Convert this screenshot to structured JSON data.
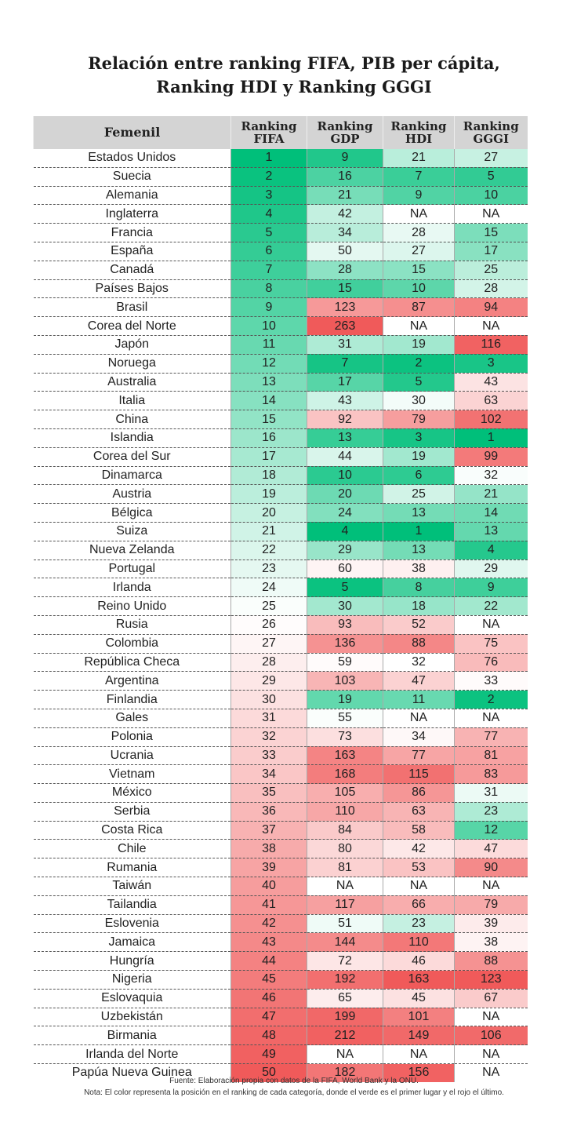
{
  "title_line1": "Relación entre ranking FIFA, PIB per cápita,",
  "title_line2": "Ranking HDI y Ranking GGGI",
  "chart_data": {
    "type": "heatmap",
    "title": "Relación entre ranking FIFA, PIB per cápita, Ranking HDI y Ranking GGGI",
    "row_header": "Femenil",
    "columns": [
      "Ranking FIFA",
      "Ranking GDP",
      "Ranking HDI",
      "Ranking GGGI"
    ],
    "color_scale": {
      "best": "#00bf7a",
      "mid": "#ffffff",
      "worst": "#f05a5a"
    },
    "rows": [
      [
        "Estados Unidos",
        "1",
        "9",
        "21",
        "27"
      ],
      [
        "Suecia",
        "2",
        "16",
        "7",
        "5"
      ],
      [
        "Alemania",
        "3",
        "21",
        "9",
        "10"
      ],
      [
        "Inglaterra",
        "4",
        "42",
        "NA",
        "NA"
      ],
      [
        "Francia",
        "5",
        "34",
        "28",
        "15"
      ],
      [
        "España",
        "6",
        "50",
        "27",
        "17"
      ],
      [
        "Canadá",
        "7",
        "28",
        "15",
        "25"
      ],
      [
        "Países Bajos",
        "8",
        "15",
        "10",
        "28"
      ],
      [
        "Brasil",
        "9",
        "123",
        "87",
        "94"
      ],
      [
        "Corea del Norte",
        "10",
        "263",
        "NA",
        "NA"
      ],
      [
        "Japón",
        "11",
        "31",
        "19",
        "116"
      ],
      [
        "Noruega",
        "12",
        "7",
        "2",
        "3"
      ],
      [
        "Australia",
        "13",
        "17",
        "5",
        "43"
      ],
      [
        "Italia",
        "14",
        "43",
        "30",
        "63"
      ],
      [
        "China",
        "15",
        "92",
        "79",
        "102"
      ],
      [
        "Islandia",
        "16",
        "13",
        "3",
        "1"
      ],
      [
        "Corea del Sur",
        "17",
        "44",
        "19",
        "99"
      ],
      [
        "Dinamarca",
        "18",
        "10",
        "6",
        "32"
      ],
      [
        "Austria",
        "19",
        "20",
        "25",
        "21"
      ],
      [
        "Bélgica",
        "20",
        "24",
        "13",
        "14"
      ],
      [
        "Suiza",
        "21",
        "4",
        "1",
        "13"
      ],
      [
        "Nueva Zelanda",
        "22",
        "29",
        "13",
        "4"
      ],
      [
        "Portugal",
        "23",
        "60",
        "38",
        "29"
      ],
      [
        "Irlanda",
        "24",
        "5",
        "8",
        "9"
      ],
      [
        "Reino Unido",
        "25",
        "30",
        "18",
        "22"
      ],
      [
        "Rusia",
        "26",
        "93",
        "52",
        "NA"
      ],
      [
        "Colombia",
        "27",
        "136",
        "88",
        "75"
      ],
      [
        "República Checa",
        "28",
        "59",
        "32",
        "76"
      ],
      [
        "Argentina",
        "29",
        "103",
        "47",
        "33"
      ],
      [
        "Finlandia",
        "30",
        "19",
        "11",
        "2"
      ],
      [
        "Gales",
        "31",
        "55",
        "NA",
        "NA"
      ],
      [
        "Polonia",
        "32",
        "73",
        "34",
        "77"
      ],
      [
        "Ucrania",
        "33",
        "163",
        "77",
        "81"
      ],
      [
        "Vietnam",
        "34",
        "168",
        "115",
        "83"
      ],
      [
        "México",
        "35",
        "105",
        "86",
        "31"
      ],
      [
        "Serbia",
        "36",
        "110",
        "63",
        "23"
      ],
      [
        "Costa Rica",
        "37",
        "84",
        "58",
        "12"
      ],
      [
        "Chile",
        "38",
        "80",
        "42",
        "47"
      ],
      [
        "Rumania",
        "39",
        "81",
        "53",
        "90"
      ],
      [
        "Taiwán",
        "40",
        "NA",
        "NA",
        "NA"
      ],
      [
        "Tailandia",
        "41",
        "117",
        "66",
        "79"
      ],
      [
        "Eslovenia",
        "42",
        "51",
        "23",
        "39"
      ],
      [
        "Jamaica",
        "43",
        "144",
        "110",
        "38"
      ],
      [
        "Hungría",
        "44",
        "72",
        "46",
        "88"
      ],
      [
        "Nigeria",
        "45",
        "192",
        "163",
        "123"
      ],
      [
        "Eslovaquia",
        "46",
        "65",
        "45",
        "67"
      ],
      [
        "Uzbekistán",
        "47",
        "199",
        "101",
        "NA"
      ],
      [
        "Birmania",
        "48",
        "212",
        "149",
        "106"
      ],
      [
        "Irlanda del Norte",
        "49",
        "NA",
        "NA",
        "NA"
      ],
      [
        "Papúa Nueva Guinea",
        "50",
        "182",
        "156",
        "NA"
      ]
    ]
  },
  "footer": {
    "source": "Fuente: Elaboración propia con datos de la FIFA, World Bank y la ONU.",
    "note": "Nota: El color representa la posición en el ranking de cada categoría, donde el verde es el primer lugar y el rojo el último."
  }
}
